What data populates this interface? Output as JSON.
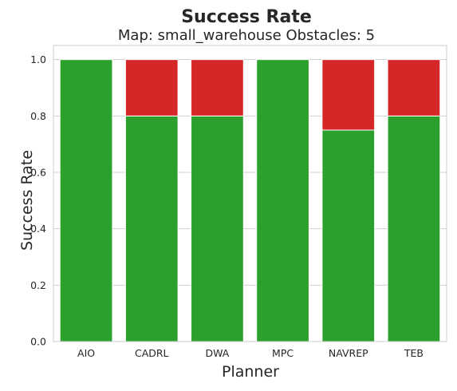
{
  "chart_data": {
    "type": "bar",
    "stacked": true,
    "title": "Success Rate",
    "subtitle": "Map: small_warehouse Obstacles: 5",
    "xlabel": "Planner",
    "ylabel": "Success Rate",
    "categories": [
      "AIO",
      "CADRL",
      "DWA",
      "MPC",
      "NAVREP",
      "TEB"
    ],
    "series": [
      {
        "values": [
          1.0,
          0.8,
          0.8,
          1.0,
          0.75,
          0.8
        ],
        "color": "#2ca02c"
      },
      {
        "values": [
          0.0,
          0.2,
          0.2,
          0.0,
          0.25,
          0.2
        ],
        "color": "#d62728"
      }
    ],
    "ylim": [
      0,
      1.05
    ],
    "yticks": [
      "0.0",
      "0.2",
      "0.4",
      "0.6",
      "0.8",
      "1.0"
    ],
    "grid": true,
    "legend": "none",
    "colors": {
      "background": "#ffffff",
      "axes_face": "#ffffff",
      "grid": "#cfcfcf",
      "spine": "#cccccc",
      "text": "#262626"
    }
  }
}
